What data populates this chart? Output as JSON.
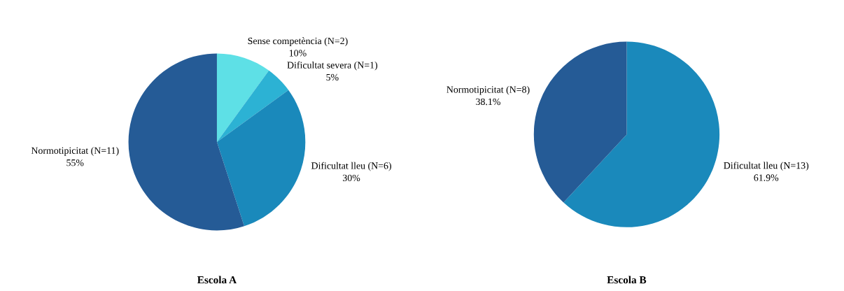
{
  "chart_data": [
    {
      "type": "pie",
      "title": "Escola A",
      "categories": [
        "Sense competència (N=2)",
        "Dificultat severa (N=1)",
        "Dificultat lleu (N=6)",
        "Normotipicitat (N=11)"
      ],
      "values": [
        10,
        5,
        30,
        55
      ],
      "value_labels": [
        "10%",
        "5%",
        "30%",
        "55%"
      ],
      "colors": [
        "#5ee0e6",
        "#2cb2d4",
        "#1a89bb",
        "#255b96"
      ]
    },
    {
      "type": "pie",
      "title": "Escola B",
      "categories": [
        "Dificultat lleu (N=13)",
        "Normotipicitat (N=8)"
      ],
      "values": [
        61.9,
        38.1
      ],
      "value_labels": [
        "61.9%",
        "38.1%"
      ],
      "colors": [
        "#1a89bb",
        "#255b96"
      ]
    }
  ]
}
